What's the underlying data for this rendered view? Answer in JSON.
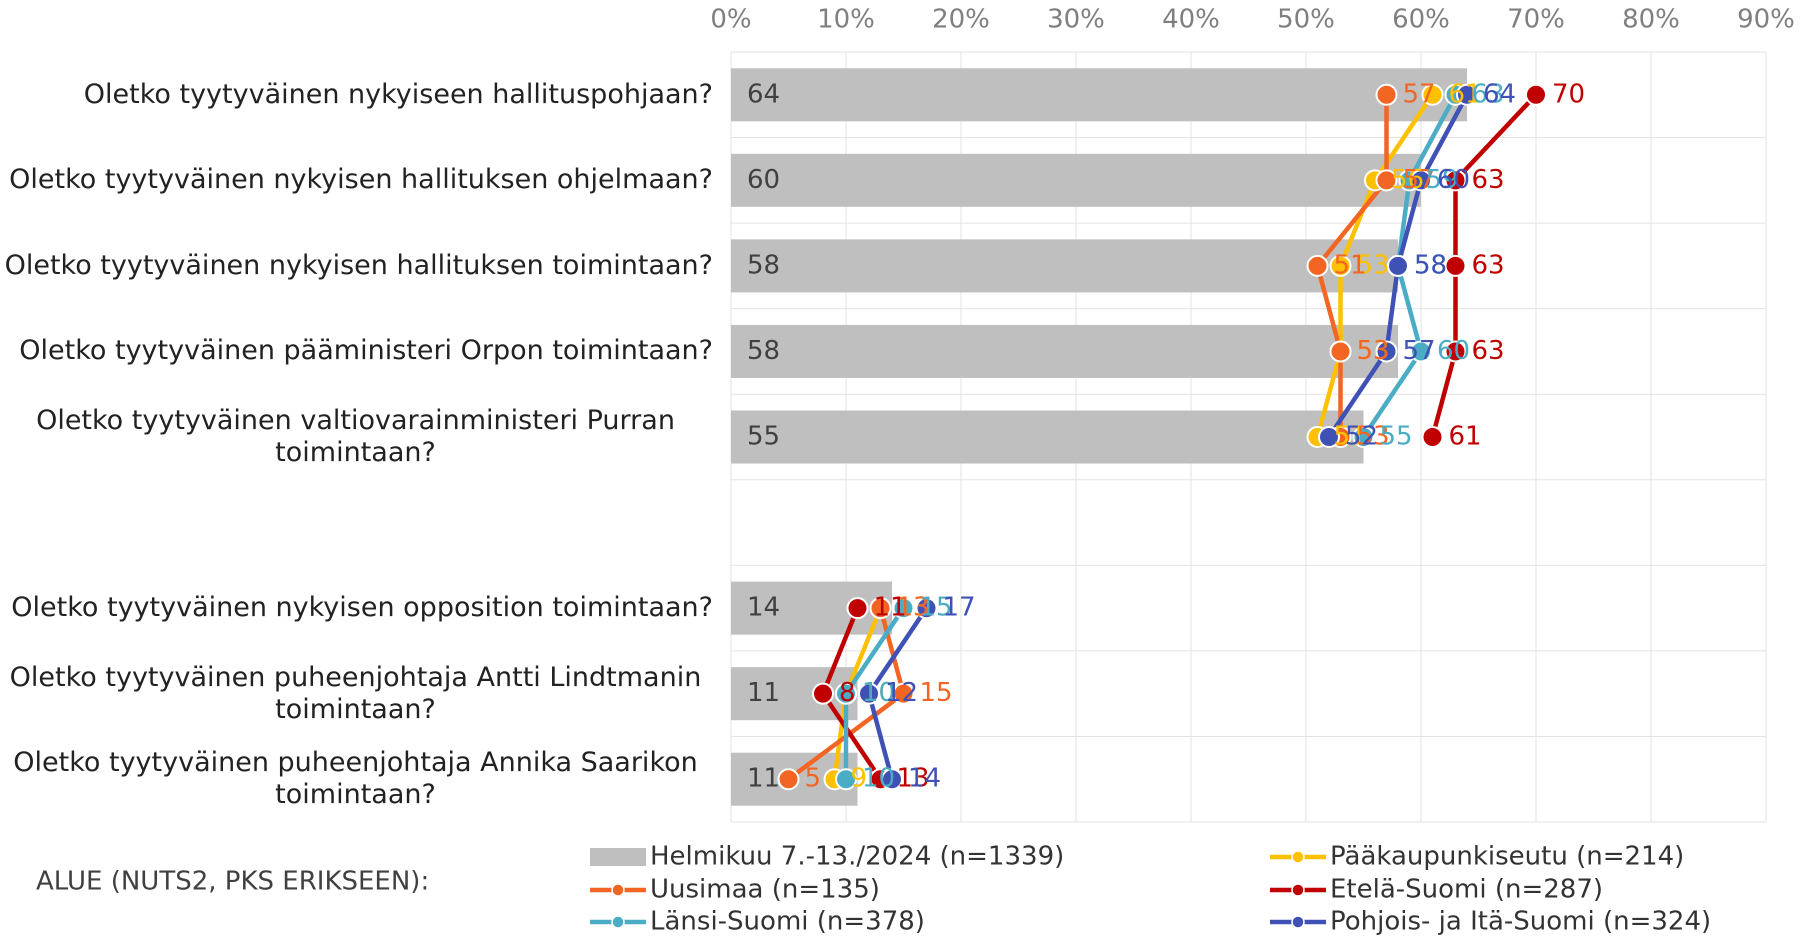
{
  "chart_data": {
    "type": "bar-line",
    "categories": [
      "Oletko tyytyväinen nykyiseen hallituspohjaan?",
      "Oletko tyytyväinen nykyisen hallituksen ohjelmaan?",
      "Oletko tyytyväinen nykyisen hallituksen toimintaan?",
      "Oletko tyytyväinen pääministeri Orpon toimintaan?",
      "Oletko tyytyväinen valtiovarainministeri Purran toimintaan?",
      null,
      "Oletko tyytyväinen nykyisen opposition toimintaan?",
      "Oletko tyytyväinen puheenjohtaja Antti Lindtmanin toimintaan?",
      "Oletko tyytyväinen puheenjohtaja Annika Saarikon toimintaan?"
    ],
    "legend_title": "ALUE (NUTS2, PKS ERIKSEEN):",
    "bar_series": {
      "name": "Helmikuu 7.-13./2024 (n=1339)",
      "color": "#bfbfbf",
      "values": [
        64,
        60,
        58,
        58,
        55,
        null,
        14,
        11,
        11
      ]
    },
    "series": [
      {
        "name": "Pääkaupunkiseutu (n=214)",
        "color": "#ffc000",
        "values": [
          61,
          56,
          53,
          53,
          51,
          null,
          13,
          10,
          9
        ]
      },
      {
        "name": "Uusimaa (n=135)",
        "color": "#f26522",
        "values": [
          57,
          57,
          51,
          53,
          53,
          null,
          13,
          15,
          5
        ]
      },
      {
        "name": "Etelä-Suomi (n=287)",
        "color": "#c00000",
        "values": [
          70,
          63,
          63,
          63,
          61,
          null,
          11,
          8,
          13
        ]
      },
      {
        "name": "Länsi-Suomi (n=378)",
        "color": "#4bacc6",
        "values": [
          63,
          59,
          58,
          60,
          55,
          null,
          15,
          10,
          10
        ]
      },
      {
        "name": "Pohjois- ja Itä-Suomi (n=324)",
        "color": "#3f51b5",
        "values": [
          64,
          60,
          58,
          57,
          52,
          null,
          17,
          12,
          14
        ]
      }
    ],
    "xlim": [
      0,
      90
    ],
    "xticks": [
      {
        "value": 0,
        "label": "0%"
      },
      {
        "value": 10,
        "label": "10%"
      },
      {
        "value": 20,
        "label": "20%"
      },
      {
        "value": 30,
        "label": "30%"
      },
      {
        "value": 40,
        "label": "40%"
      },
      {
        "value": 50,
        "label": "50%"
      },
      {
        "value": 60,
        "label": "60%"
      },
      {
        "value": 70,
        "label": "70%"
      },
      {
        "value": 80,
        "label": "80%"
      },
      {
        "value": 90,
        "label": "90%"
      }
    ],
    "grid": true
  }
}
